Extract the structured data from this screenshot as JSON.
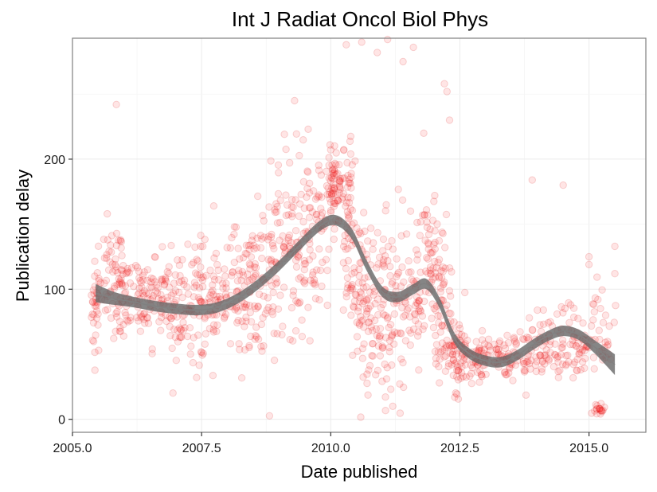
{
  "chart_data": {
    "type": "scatter",
    "title": "Int J Radiat Oncol Biol Phys",
    "xlabel": "Date published",
    "ylabel": "Publication delay",
    "xlim": [
      2005.0,
      2016.1
    ],
    "ylim": [
      -10,
      293
    ],
    "x_ticks": [
      2005.0,
      2007.5,
      2010.0,
      2012.5,
      2015.0
    ],
    "x_tick_labels": [
      "2005.0",
      "2007.5",
      "2010.0",
      "2012.5",
      "2015.0"
    ],
    "y_ticks": [
      0,
      100,
      200
    ],
    "y_tick_labels": [
      "0",
      "100",
      "200"
    ],
    "grid": true,
    "legend": "none",
    "colors": {
      "points": "#ff0000",
      "smooth_band": "#666666",
      "smooth_line": "#808080",
      "panel_border": "#7f7f7f",
      "grid": "#ebebeb"
    },
    "series": [
      {
        "kind": "scatter_clusters",
        "description_note": "",
        "clusters": [
          {
            "x": 2005.45,
            "y": 85,
            "sd_y": 18,
            "sd_x": 0.05,
            "n": 35
          },
          {
            "x": 2005.75,
            "y": 108,
            "sd_y": 20,
            "sd_x": 0.12,
            "n": 45
          },
          {
            "x": 2005.95,
            "y": 95,
            "sd_y": 22,
            "sd_x": 0.08,
            "n": 35
          },
          {
            "x": 2006.3,
            "y": 98,
            "sd_y": 18,
            "sd_x": 0.2,
            "n": 60
          },
          {
            "x": 2006.75,
            "y": 92,
            "sd_y": 18,
            "sd_x": 0.2,
            "n": 55
          },
          {
            "x": 2007.1,
            "y": 88,
            "sd_y": 20,
            "sd_x": 0.15,
            "n": 50
          },
          {
            "x": 2007.45,
            "y": 90,
            "sd_y": 22,
            "sd_x": 0.12,
            "n": 45
          },
          {
            "x": 2007.8,
            "y": 92,
            "sd_y": 22,
            "sd_x": 0.15,
            "n": 50
          },
          {
            "x": 2008.2,
            "y": 95,
            "sd_y": 25,
            "sd_x": 0.15,
            "n": 55
          },
          {
            "x": 2008.55,
            "y": 103,
            "sd_y": 28,
            "sd_x": 0.12,
            "n": 55
          },
          {
            "x": 2008.9,
            "y": 118,
            "sd_y": 30,
            "sd_x": 0.15,
            "n": 60
          },
          {
            "x": 2009.3,
            "y": 130,
            "sd_y": 35,
            "sd_x": 0.15,
            "n": 70
          },
          {
            "x": 2009.7,
            "y": 140,
            "sd_y": 30,
            "sd_x": 0.15,
            "n": 65
          },
          {
            "x": 2010.1,
            "y": 178,
            "sd_y": 14,
            "sd_x": 0.12,
            "n": 80
          },
          {
            "x": 2010.35,
            "y": 150,
            "sd_y": 35,
            "sd_x": 0.08,
            "n": 50
          },
          {
            "x": 2010.6,
            "y": 95,
            "sd_y": 30,
            "sd_x": 0.12,
            "n": 70
          },
          {
            "x": 2010.95,
            "y": 85,
            "sd_y": 35,
            "sd_x": 0.15,
            "n": 70
          },
          {
            "x": 2011.3,
            "y": 85,
            "sd_y": 35,
            "sd_x": 0.15,
            "n": 60
          },
          {
            "x": 2011.65,
            "y": 80,
            "sd_y": 25,
            "sd_x": 0.1,
            "n": 40
          },
          {
            "x": 2011.9,
            "y": 130,
            "sd_y": 25,
            "sd_x": 0.08,
            "n": 50
          },
          {
            "x": 2012.15,
            "y": 88,
            "sd_y": 30,
            "sd_x": 0.1,
            "n": 60
          },
          {
            "x": 2012.45,
            "y": 52,
            "sd_y": 14,
            "sd_x": 0.12,
            "n": 60
          },
          {
            "x": 2012.85,
            "y": 48,
            "sd_y": 8,
            "sd_x": 0.2,
            "n": 55
          },
          {
            "x": 2013.35,
            "y": 47,
            "sd_y": 8,
            "sd_x": 0.25,
            "n": 55
          },
          {
            "x": 2013.85,
            "y": 50,
            "sd_y": 10,
            "sd_x": 0.2,
            "n": 45
          },
          {
            "x": 2014.3,
            "y": 60,
            "sd_y": 15,
            "sd_x": 0.2,
            "n": 50
          },
          {
            "x": 2014.75,
            "y": 58,
            "sd_y": 18,
            "sd_x": 0.2,
            "n": 45
          },
          {
            "x": 2015.15,
            "y": 55,
            "sd_y": 20,
            "sd_x": 0.15,
            "n": 35
          },
          {
            "x": 2015.2,
            "y": 7,
            "sd_y": 2,
            "sd_x": 0.05,
            "n": 18
          }
        ],
        "outliers": [
          [
            2005.85,
            242
          ],
          [
            2010.3,
            288
          ],
          [
            2010.6,
            290
          ],
          [
            2010.9,
            282
          ],
          [
            2011.1,
            292
          ],
          [
            2011.4,
            275
          ],
          [
            2011.6,
            286
          ],
          [
            2012.2,
            258
          ],
          [
            2012.25,
            252
          ],
          [
            2011.2,
            10
          ],
          [
            2012.4,
            17
          ],
          [
            2014.5,
            180
          ],
          [
            2013.9,
            184
          ],
          [
            2015.5,
            133
          ],
          [
            2015.5,
            112
          ],
          [
            2015.0,
            119
          ],
          [
            2015.0,
            125
          ],
          [
            2012.3,
            230
          ],
          [
            2011.8,
            220
          ],
          [
            2009.3,
            245
          ]
        ]
      },
      {
        "kind": "smooth",
        "x": [
          2005.45,
          2005.8,
          2006.2,
          2006.6,
          2007.0,
          2007.4,
          2007.8,
          2008.2,
          2008.6,
          2009.0,
          2009.4,
          2009.8,
          2010.1,
          2010.4,
          2010.7,
          2011.0,
          2011.3,
          2011.6,
          2011.85,
          2012.1,
          2012.4,
          2012.7,
          2013.0,
          2013.3,
          2013.6,
          2013.9,
          2014.2,
          2014.5,
          2014.8,
          2015.1,
          2015.5
        ],
        "y": [
          97,
          93,
          90,
          87,
          85,
          84,
          86,
          93,
          104,
          118,
          134,
          149,
          153,
          143,
          118,
          98,
          94,
          100,
          104,
          90,
          62,
          50,
          45,
          44,
          49,
          57,
          64,
          68,
          65,
          56,
          42
        ],
        "band_halfwidth": [
          7,
          5,
          4,
          4,
          4,
          4,
          4,
          4,
          4,
          4,
          4,
          4,
          4,
          4,
          4,
          4,
          4,
          4,
          4,
          4,
          4,
          4,
          4,
          4,
          4,
          4,
          4,
          4,
          4,
          5,
          8
        ]
      }
    ]
  }
}
